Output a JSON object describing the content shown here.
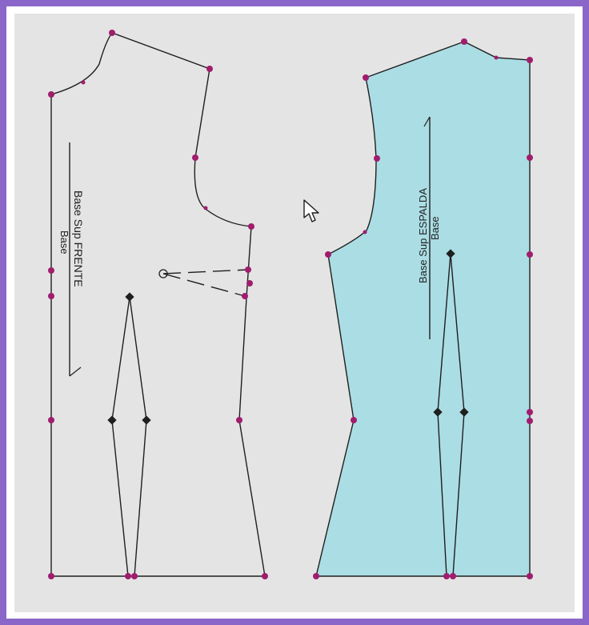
{
  "colors": {
    "frame": "#8a66c8",
    "canvas": "#e4e4e4",
    "back_fill": "#abdde4",
    "point": "#a01d6e",
    "line": "#1f1f1f"
  },
  "front_piece": {
    "title_line1": "Base Sup FRENTE",
    "title_line2": "Base"
  },
  "back_piece": {
    "title_line1": "Base Sup ESPALDA",
    "title_line2": "Base"
  },
  "pointer": {
    "icon": "arrow-cursor-icon"
  }
}
